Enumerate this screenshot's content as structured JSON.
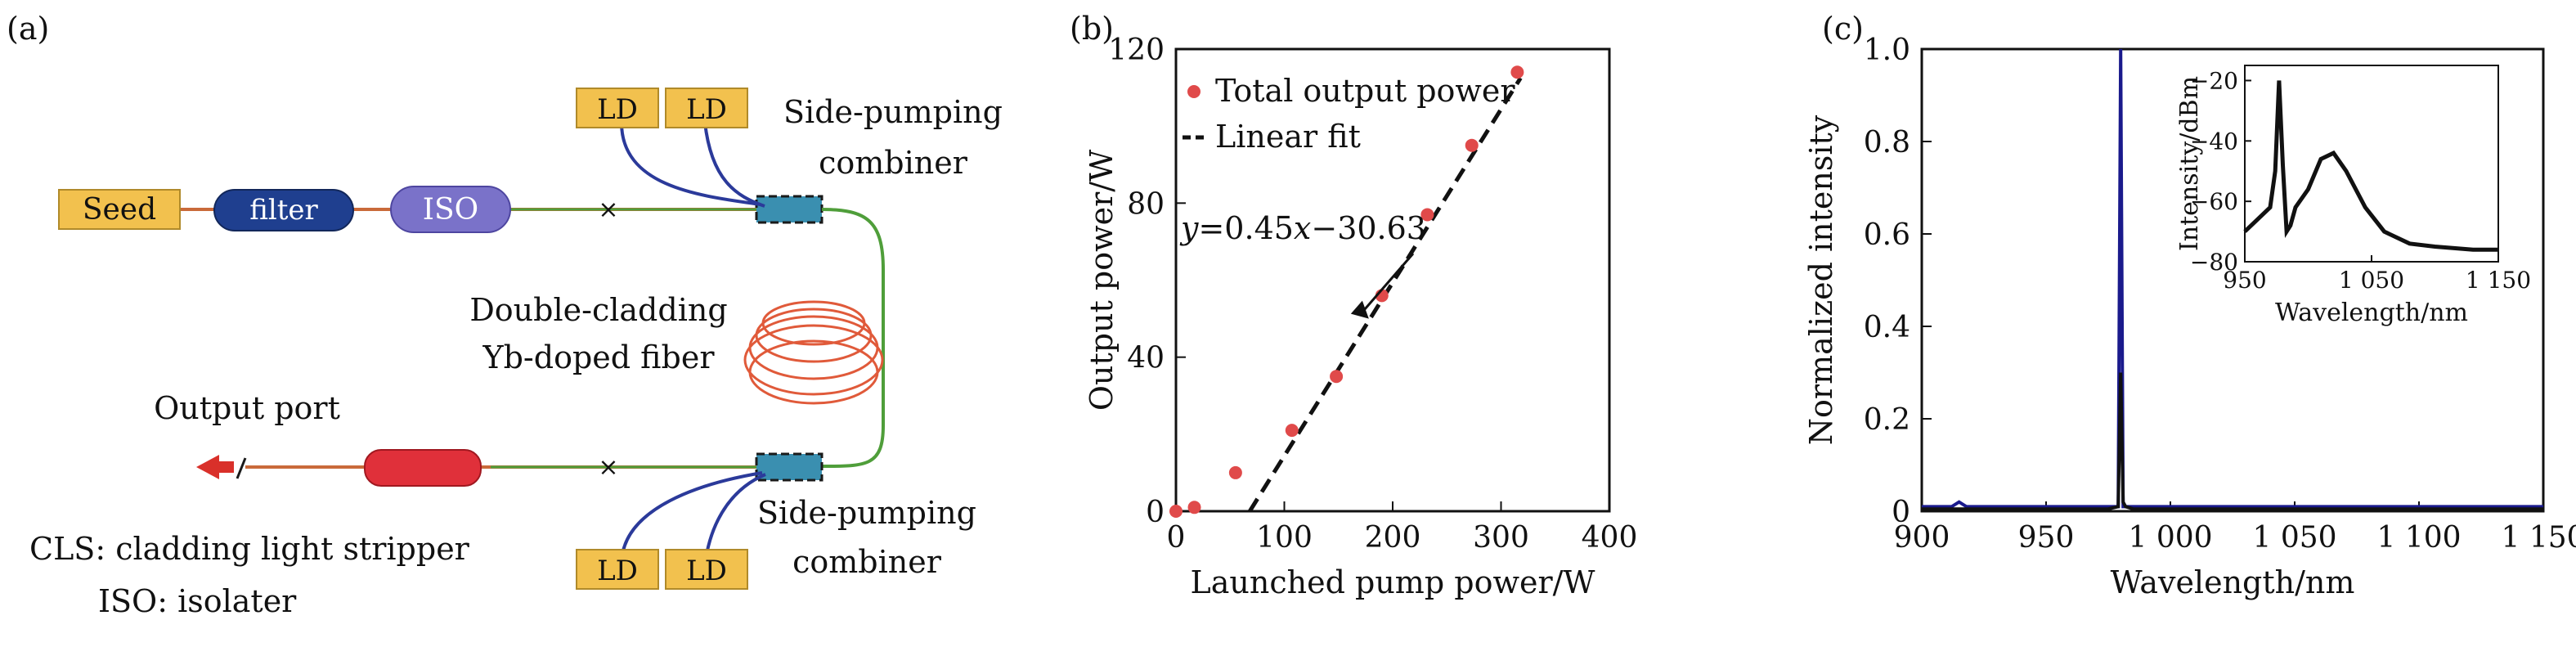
{
  "panel_a": {
    "label": "(a)",
    "seed": "Seed",
    "filter": "filter",
    "iso": "ISO",
    "ld": "LD",
    "combiner_top": [
      "Side-pumping",
      "combiner"
    ],
    "combiner_bottom": [
      "Side-pumping",
      "combiner"
    ],
    "fiber": [
      "Double-cladding",
      "Yb-doped fiber"
    ],
    "output_port": "Output port",
    "legend_cls": "CLS: cladding light stripper",
    "legend_iso": "ISO: isolater",
    "colors": {
      "box_fill": "#f2c14e",
      "filter_fill": "#1f3f8f",
      "iso_fill": "#7a72c9",
      "cls_fill": "#e0303a",
      "fiber": "#e05a3a",
      "arrow": "#d9302a"
    }
  },
  "panel_b": {
    "label": "(b)",
    "chart_data": {
      "type": "scatter",
      "xlabel": "Launched pump power/W",
      "ylabel": "Output power/W",
      "xlim": [
        0,
        400
      ],
      "ylim": [
        0,
        120
      ],
      "xticks": [
        0,
        100,
        200,
        300,
        400
      ],
      "yticks": [
        0,
        40,
        80,
        120
      ],
      "series": [
        {
          "name": "Total output power",
          "kind": "points",
          "color": "#e04a4a",
          "x": [
            0,
            17,
            55,
            107,
            148,
            190,
            232,
            273,
            315
          ],
          "y": [
            0,
            1,
            10,
            21,
            35,
            56,
            77,
            95,
            114
          ]
        }
      ],
      "fit": {
        "name": "Linear fit",
        "slope": 0.45,
        "intercept": -30.63,
        "x_range": [
          68,
          318
        ],
        "color": "#111111"
      },
      "annotation": {
        "text_prefix": "y",
        "text_eq": "=0.45",
        "text_var": "x",
        "text_rest": "−30.63"
      },
      "legend_position": "top-left",
      "grid": false
    }
  },
  "panel_c": {
    "label": "(c)",
    "chart_data": {
      "type": "line",
      "xlabel": "Wavelength/nm",
      "ylabel": "Normalized intensity",
      "xlim": [
        900,
        1150
      ],
      "ylim": [
        0,
        1.0
      ],
      "xticks": [
        900,
        950,
        1000,
        1050,
        1100,
        1150
      ],
      "xticklabels": [
        "900",
        "950",
        "1 000",
        "1 050",
        "1 100",
        "1 150"
      ],
      "yticks": [
        0,
        0.2,
        0.4,
        0.6,
        0.8,
        1.0
      ],
      "yticklabels": [
        "0",
        "0.2",
        "0.4",
        "0.6",
        "0.8",
        "1.0"
      ],
      "series": [
        {
          "kind": "blue",
          "color": "#1a1a8c",
          "x": [
            900,
            912,
            915,
            918,
            975,
            979,
            980,
            981,
            985,
            1150
          ],
          "y": [
            0.01,
            0.01,
            0.02,
            0.01,
            0.01,
            0.01,
            1.0,
            0.01,
            0.01,
            0.01
          ]
        },
        {
          "kind": "black",
          "color": "#111111",
          "x": [
            900,
            975,
            979,
            980,
            981,
            982,
            985,
            1150
          ],
          "y": [
            0.005,
            0.005,
            0.01,
            0.3,
            0.02,
            0.01,
            0.005,
            0.005
          ]
        }
      ],
      "inset": {
        "xlabel": "Wavelength/nm",
        "ylabel": "Intensity/dBm",
        "xlim": [
          950,
          1150
        ],
        "ylim": [
          -80,
          -15
        ],
        "xticks": [
          950,
          1050,
          1150
        ],
        "xticklabels": [
          "950",
          "1 050",
          "1 150"
        ],
        "yticks": [
          -80,
          -60,
          -40,
          -20
        ],
        "yticklabels": [
          "−80",
          "−60",
          "−40",
          "−20"
        ],
        "x": [
          950,
          960,
          970,
          974,
          977,
          980,
          983,
          986,
          990,
          1000,
          1010,
          1020,
          1030,
          1045,
          1060,
          1080,
          1100,
          1130,
          1150
        ],
        "y": [
          -70,
          -66,
          -62,
          -50,
          -20,
          -48,
          -70,
          -68,
          -62,
          -56,
          -46,
          -44,
          -50,
          -62,
          -70,
          -74,
          -75,
          -76,
          -76
        ]
      }
    }
  }
}
